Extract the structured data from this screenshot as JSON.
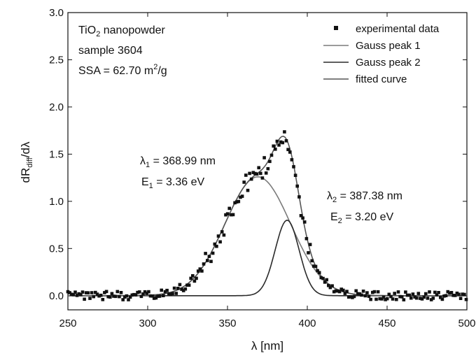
{
  "chart_data": {
    "type": "scatter",
    "xlabel": "λ [nm]",
    "ylabel": "dR_diff/dλ",
    "xlim": [
      250,
      500
    ],
    "ylim": [
      -0.15,
      3.0
    ],
    "x_ticks": [
      "250",
      "300",
      "350",
      "400",
      "450",
      "500"
    ],
    "y_ticks": [
      "0.0",
      "0.5",
      "1.0",
      "1.5",
      "2.0",
      "2.5",
      "3.0"
    ],
    "grid": false,
    "legend_position": "top-right",
    "sample_info": {
      "material_prefix": "TiO",
      "material_sub": "2",
      "material_suffix": " nanopowder",
      "sample": "sample 3604",
      "ssa_prefix": "SSA = 62.70 m",
      "ssa_sup": "2",
      "ssa_suffix": "/g"
    },
    "peak_labels": [
      {
        "lambda_sym": "λ",
        "lambda_sub": "1",
        "lambda_value": " = 368.99 nm",
        "energy_sym": "E",
        "energy_sub": "1",
        "energy_value": " = 3.36 eV"
      },
      {
        "lambda_sym": "λ",
        "lambda_sub": "2",
        "lambda_value": " = 387.38 nm",
        "energy_sym": "E",
        "energy_sub": "2",
        "energy_value": " = 3.20 eV"
      }
    ],
    "series": [
      {
        "name": "experimental data",
        "kind": "points",
        "color": "#111111",
        "baseline": 0.0,
        "center": 380,
        "amplitude": 1.72,
        "sigma": 16,
        "noise": 0.045
      },
      {
        "name": "Gauss peak 1",
        "kind": "line",
        "color": "#7a7a7a",
        "center": 368.99,
        "amplitude": 1.26,
        "sigma": 20.5
      },
      {
        "name": "Gauss peak 2",
        "kind": "line",
        "color": "#2a2a2a",
        "center": 387.38,
        "amplitude": 0.8,
        "sigma": 7.5
      },
      {
        "name": "fitted curve",
        "kind": "line",
        "color": "#555555"
      }
    ]
  }
}
